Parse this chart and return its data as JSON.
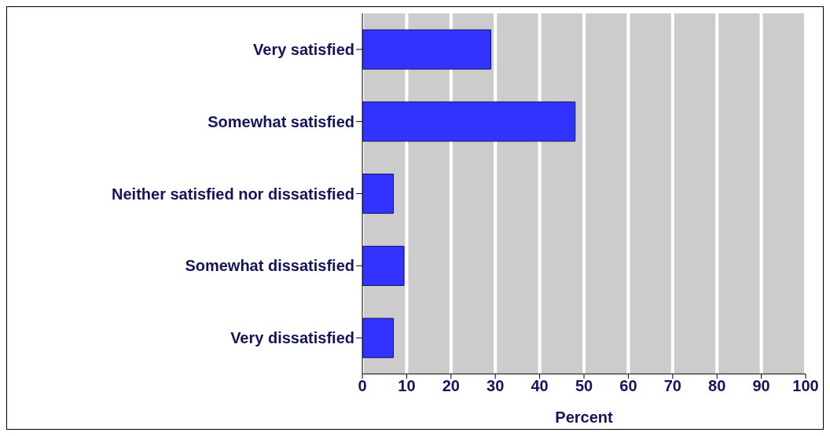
{
  "chart_data": {
    "type": "bar",
    "orientation": "horizontal",
    "categories": [
      "Very satisfied",
      "Somewhat satisfied",
      "Neither satisfied nor dissatisfied",
      "Somewhat dissatisfied",
      "Very dissatisfied"
    ],
    "values": [
      29,
      48,
      7,
      9.4,
      7
    ],
    "color": "#3333ff",
    "xlabel": "Percent",
    "xlim": [
      0,
      100
    ],
    "xticks": [
      0,
      10,
      20,
      30,
      40,
      50,
      60,
      70,
      80,
      90,
      100
    ],
    "grid": "x"
  }
}
